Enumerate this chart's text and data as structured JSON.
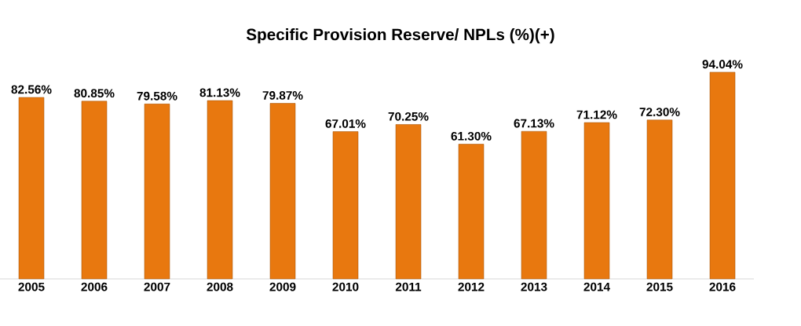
{
  "chart_data": {
    "type": "bar",
    "title": "Specific Provision Reserve/ NPLs (%)(+)",
    "categories": [
      "2005",
      "2006",
      "2007",
      "2008",
      "2009",
      "2010",
      "2011",
      "2012",
      "2013",
      "2014",
      "2015",
      "2016"
    ],
    "values": [
      82.56,
      80.85,
      79.58,
      81.13,
      79.87,
      67.01,
      70.25,
      61.3,
      67.13,
      71.12,
      72.3,
      94.04
    ],
    "value_labels": [
      "82.56%",
      "80.85%",
      "79.58%",
      "81.13%",
      "79.87%",
      "67.01%",
      "70.25%",
      "61.30%",
      "67.13%",
      "71.12%",
      "72.30%",
      "94.04%"
    ],
    "color": "#e8780f"
  }
}
